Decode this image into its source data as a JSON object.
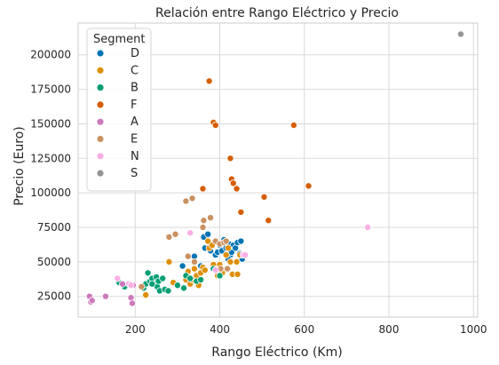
{
  "chart_data": {
    "type": "scatter",
    "title": "Relación entre Rango Eléctrico y Precio",
    "xlabel": "Rango Eléctrico (Km)",
    "ylabel": "Precio (Euro)",
    "xlim": [
      65,
      1010
    ],
    "ylim": [
      10000,
      223000
    ],
    "xticks": [
      200,
      400,
      600,
      800,
      1000
    ],
    "yticks": [
      25000,
      50000,
      75000,
      100000,
      125000,
      150000,
      175000,
      200000
    ],
    "xtick_labels": [
      "200",
      "400",
      "600",
      "800",
      "1000"
    ],
    "ytick_labels": [
      "25000",
      "50000",
      "75000",
      "100000",
      "125000",
      "150000",
      "175000",
      "200000"
    ],
    "grid": true,
    "legend": {
      "title": "Segment",
      "placement": "top-left"
    },
    "series": [
      {
        "name": "D",
        "color": "#0173b2",
        "points": [
          [
            312,
            47000
          ],
          [
            340,
            54000
          ],
          [
            355,
            47000
          ],
          [
            362,
            68000
          ],
          [
            372,
            70000
          ],
          [
            378,
            58000
          ],
          [
            390,
            55000
          ],
          [
            395,
            57000
          ],
          [
            400,
            62000
          ],
          [
            405,
            58000
          ],
          [
            410,
            66000
          ],
          [
            415,
            60000
          ],
          [
            422,
            63000
          ],
          [
            425,
            55000
          ],
          [
            428,
            57000
          ],
          [
            432,
            62000
          ],
          [
            437,
            60000
          ],
          [
            442,
            64000
          ],
          [
            447,
            56000
          ],
          [
            450,
            65000
          ],
          [
            453,
            52000
          ],
          [
            365,
            60000
          ],
          [
            420,
            52000
          ]
        ]
      },
      {
        "name": "C",
        "color": "#de8f05",
        "points": [
          [
            225,
            26000
          ],
          [
            280,
            50000
          ],
          [
            290,
            35000
          ],
          [
            320,
            37000
          ],
          [
            325,
            43000
          ],
          [
            330,
            34000
          ],
          [
            335,
            38000
          ],
          [
            340,
            45000
          ],
          [
            345,
            40000
          ],
          [
            350,
            33000
          ],
          [
            355,
            42000
          ],
          [
            360,
            46000
          ],
          [
            365,
            44000
          ],
          [
            372,
            65000
          ],
          [
            375,
            60000
          ],
          [
            382,
            62000
          ],
          [
            395,
            40000
          ],
          [
            400,
            48000
          ],
          [
            403,
            45000
          ],
          [
            406,
            42000
          ],
          [
            415,
            55000
          ],
          [
            420,
            60000
          ],
          [
            425,
            50000
          ],
          [
            430,
            41000
          ],
          [
            440,
            50000
          ],
          [
            442,
            41000
          ],
          [
            448,
            55000
          ],
          [
            335,
            37000
          ],
          [
            385,
            48000
          ]
        ]
      },
      {
        "name": "B",
        "color": "#029e73",
        "points": [
          [
            162,
            35000
          ],
          [
            175,
            32000
          ],
          [
            195,
            33000
          ],
          [
            220,
            31000
          ],
          [
            225,
            34000
          ],
          [
            230,
            42000
          ],
          [
            235,
            36000
          ],
          [
            240,
            38000
          ],
          [
            245,
            34000
          ],
          [
            250,
            39000
          ],
          [
            252,
            32000
          ],
          [
            255,
            36000
          ],
          [
            258,
            29000
          ],
          [
            265,
            38000
          ],
          [
            270,
            30000
          ],
          [
            278,
            29000
          ],
          [
            300,
            33000
          ],
          [
            315,
            31000
          ],
          [
            320,
            40000
          ],
          [
            330,
            38000
          ],
          [
            345,
            36000
          ],
          [
            355,
            37000
          ],
          [
            385,
            45000
          ],
          [
            400,
            40000
          ],
          [
            240,
            34000
          ]
        ]
      },
      {
        "name": "F",
        "color": "#d55e00",
        "points": [
          [
            375,
            181000
          ],
          [
            385,
            151000
          ],
          [
            390,
            149000
          ],
          [
            360,
            103000
          ],
          [
            425,
            125000
          ],
          [
            428,
            110000
          ],
          [
            432,
            107000
          ],
          [
            440,
            103000
          ],
          [
            450,
            86000
          ],
          [
            505,
            97000
          ],
          [
            515,
            80000
          ],
          [
            575,
            149000
          ],
          [
            610,
            105000
          ]
        ]
      },
      {
        "name": "A",
        "color": "#cc78bc",
        "points": [
          [
            92,
            25000
          ],
          [
            95,
            21000
          ],
          [
            98,
            22000
          ],
          [
            130,
            25000
          ],
          [
            170,
            34000
          ],
          [
            190,
            24000
          ],
          [
            193,
            20000
          ],
          [
            195,
            33000
          ]
        ]
      },
      {
        "name": "E",
        "color": "#ca9161",
        "points": [
          [
            215,
            32000
          ],
          [
            280,
            68000
          ],
          [
            295,
            70000
          ],
          [
            320,
            94000
          ],
          [
            325,
            54000
          ],
          [
            335,
            96000
          ],
          [
            340,
            50000
          ],
          [
            360,
            75000
          ],
          [
            362,
            80000
          ],
          [
            378,
            82000
          ],
          [
            390,
            65000
          ],
          [
            400,
            63000
          ],
          [
            402,
            45000
          ],
          [
            410,
            64000
          ],
          [
            415,
            65000
          ],
          [
            418,
            45000
          ]
        ]
      },
      {
        "name": "N",
        "color": "#fbafe4",
        "points": [
          [
            158,
            38000
          ],
          [
            185,
            34000
          ],
          [
            190,
            33000
          ],
          [
            330,
            71000
          ],
          [
            390,
            44000
          ],
          [
            455,
            55000
          ],
          [
            460,
            55000
          ],
          [
            750,
            75000
          ]
        ]
      },
      {
        "name": "S",
        "color": "#949494",
        "points": [
          [
            970,
            215000
          ]
        ]
      }
    ]
  }
}
